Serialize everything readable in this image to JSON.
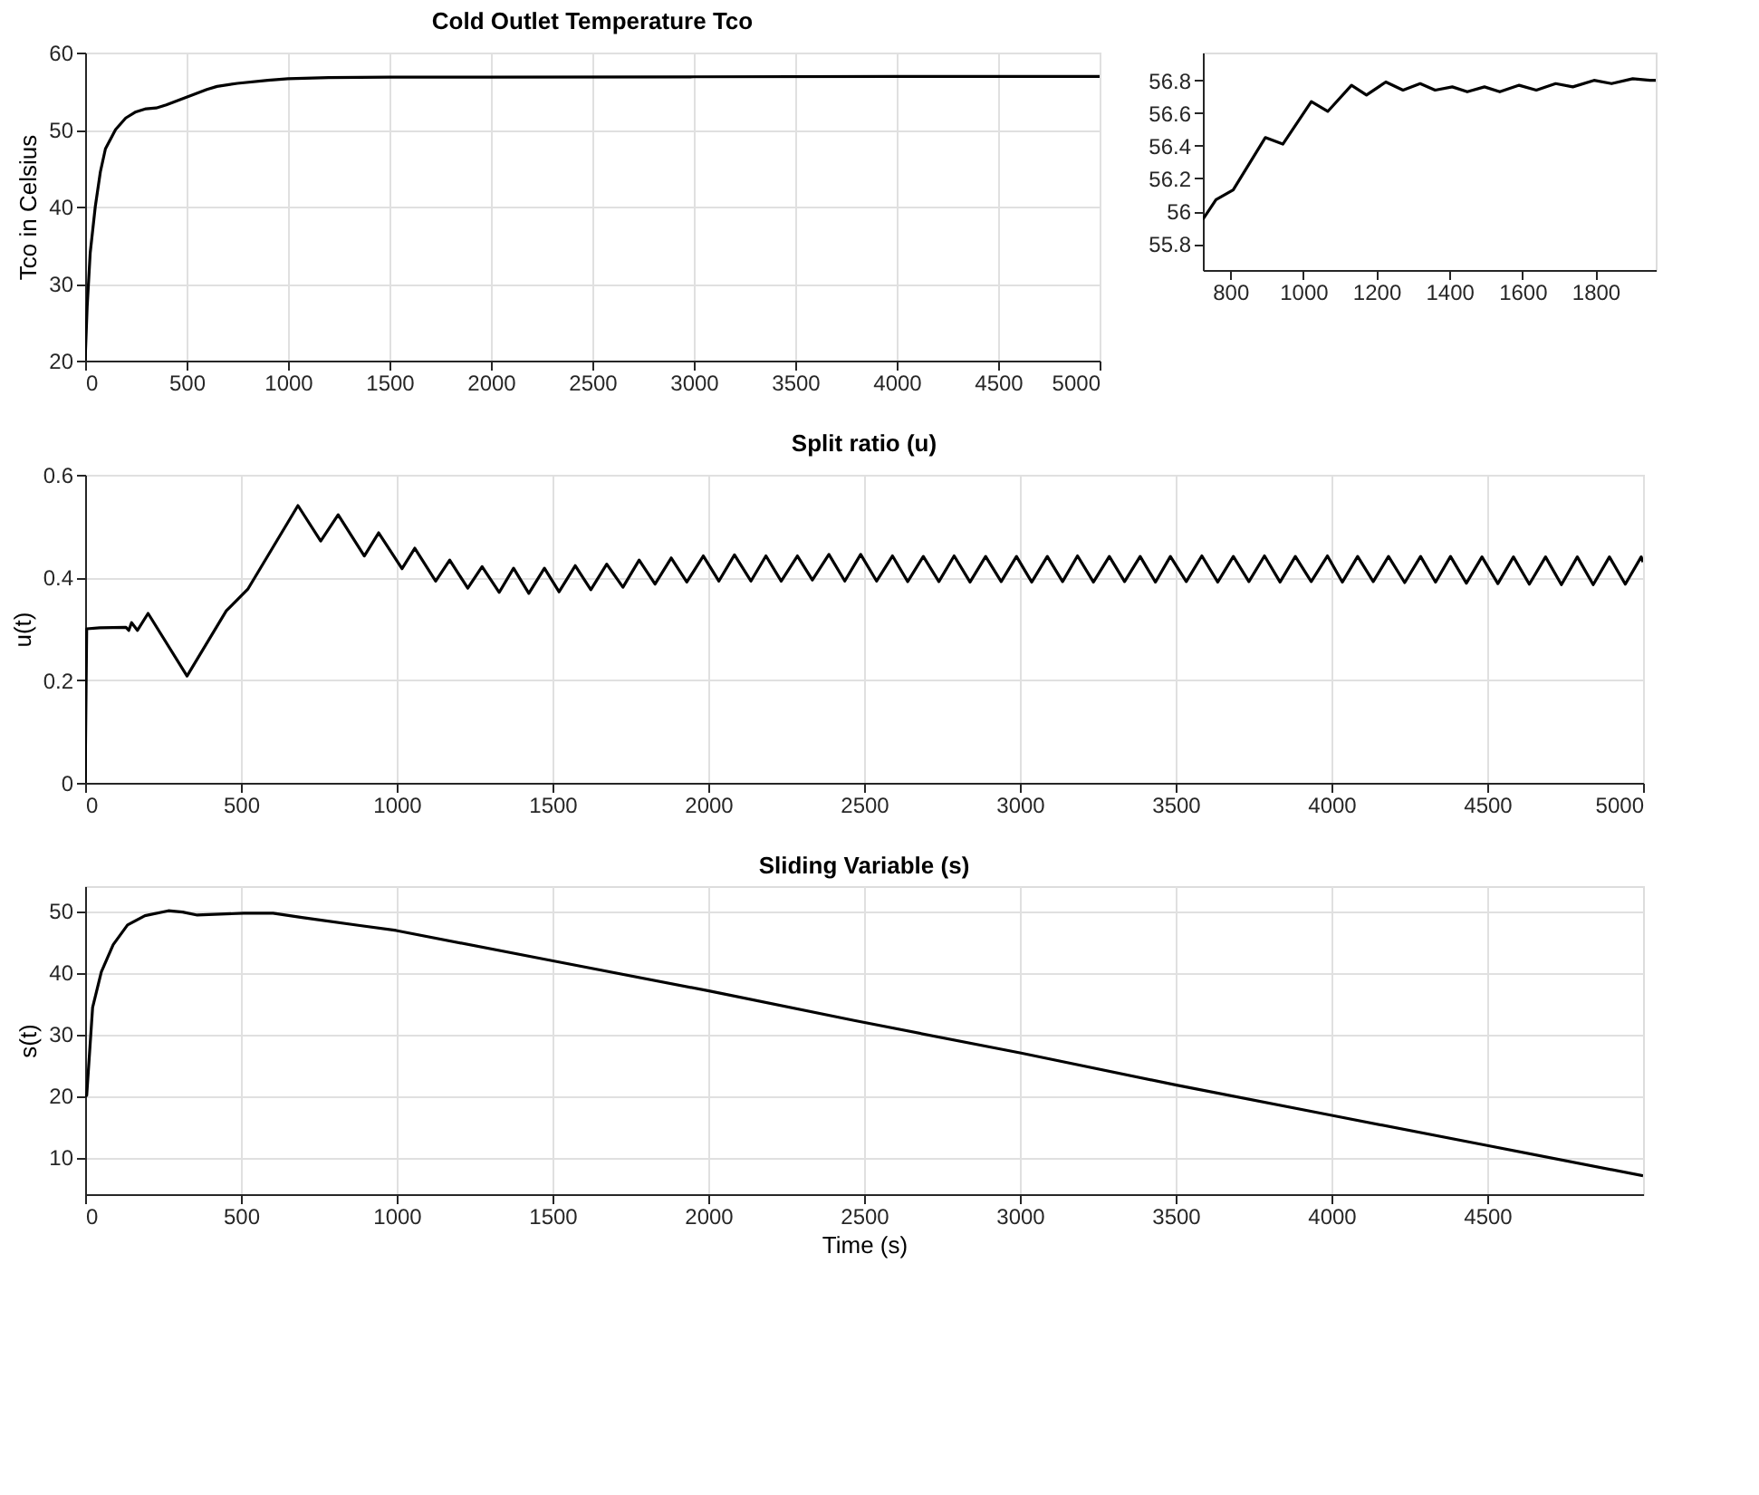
{
  "chart_data": [
    {
      "type": "line",
      "title": "Cold Outlet Temperature Tco",
      "ylabel": "Tco in Celsius",
      "xlim": [
        0,
        5000
      ],
      "ylim": [
        20,
        60
      ],
      "xticks": [
        0,
        500,
        1000,
        1500,
        2000,
        2500,
        3000,
        3500,
        4000,
        4500,
        5000
      ],
      "yticks": [
        20,
        30,
        40,
        50,
        60
      ],
      "grid": true,
      "x": [
        0,
        10,
        25,
        50,
        75,
        100,
        150,
        200,
        250,
        300,
        350,
        400,
        500,
        600,
        650,
        750,
        900,
        1000,
        1200,
        1500,
        2000,
        3000,
        4000,
        5000
      ],
      "series": [
        {
          "color": "#000000",
          "values": [
            20,
            27,
            34,
            40,
            44.5,
            47.5,
            50,
            51.5,
            52.3,
            52.7,
            52.8,
            53.2,
            54.2,
            55.2,
            55.6,
            56,
            56.4,
            56.6,
            56.75,
            56.8,
            56.8,
            56.85,
            56.9,
            56.9
          ]
        }
      ]
    },
    {
      "type": "line",
      "xlim": [
        725,
        1965
      ],
      "ylim": [
        55.64,
        56.97
      ],
      "xticks": [
        800,
        1000,
        1200,
        1400,
        1600,
        1800
      ],
      "yticks": [
        55.8,
        56,
        56.2,
        56.4,
        56.6,
        56.8
      ],
      "grid": false,
      "x": [
        725,
        761,
        808,
        896,
        944,
        1022,
        1067,
        1132,
        1173,
        1226,
        1273,
        1320,
        1361,
        1408,
        1449,
        1496,
        1538,
        1591,
        1638,
        1691,
        1738,
        1796,
        1844,
        1902,
        1949,
        1965
      ],
      "series": [
        {
          "color": "#000000",
          "values": [
            55.95,
            56.07,
            56.13,
            56.45,
            56.41,
            56.67,
            56.61,
            56.77,
            56.71,
            56.79,
            56.74,
            56.78,
            56.74,
            56.76,
            56.73,
            56.76,
            56.73,
            56.77,
            56.74,
            56.78,
            56.76,
            56.8,
            56.78,
            56.81,
            56.8,
            56.8
          ]
        }
      ]
    },
    {
      "type": "line",
      "title": "Split ratio (u)",
      "ylabel": "u(t)",
      "xlim": [
        0,
        5000
      ],
      "ylim": [
        0,
        0.6
      ],
      "xticks": [
        0,
        500,
        1000,
        1500,
        2000,
        2500,
        3000,
        3500,
        4000,
        4500,
        5000
      ],
      "yticks": [
        0,
        0.2,
        0.4,
        0.6
      ],
      "grid": true,
      "x": [
        0,
        5,
        47,
        131,
        140,
        149,
        168,
        202,
        327,
        453,
        523,
        683,
        756,
        812,
        896,
        942,
        1017,
        1058,
        1125,
        1170,
        1228,
        1274,
        1329,
        1375,
        1424,
        1474,
        1521,
        1573,
        1623,
        1674,
        1726,
        1778,
        1829,
        1881,
        1931,
        1984,
        2034,
        2084,
        2137,
        2185,
        2234,
        2286,
        2334,
        2387,
        2438,
        2489,
        2540,
        2591,
        2640,
        2690,
        2740,
        2789,
        2840,
        2890,
        2940,
        2989,
        3038,
        3088,
        3137,
        3185,
        3236,
        3287,
        3336,
        3386,
        3435,
        3483,
        3534,
        3584,
        3635,
        3685,
        3735,
        3785,
        3835,
        3884,
        3935,
        3987,
        4035,
        4084,
        4134,
        4183,
        4235,
        4286,
        4334,
        4382,
        4433,
        4483,
        4534,
        4584,
        4635,
        4687,
        4738,
        4789,
        4840,
        4892,
        4943,
        4994,
        5000
      ],
      "series": [
        {
          "color": "#000000",
          "values": [
            0,
            0.3,
            0.302,
            0.303,
            0.297,
            0.312,
            0.297,
            0.33,
            0.208,
            0.335,
            0.378,
            0.54,
            0.471,
            0.522,
            0.442,
            0.487,
            0.417,
            0.457,
            0.393,
            0.434,
            0.379,
            0.421,
            0.371,
            0.418,
            0.369,
            0.418,
            0.372,
            0.423,
            0.376,
            0.426,
            0.381,
            0.434,
            0.387,
            0.438,
            0.391,
            0.442,
            0.393,
            0.444,
            0.393,
            0.442,
            0.393,
            0.442,
            0.395,
            0.445,
            0.393,
            0.445,
            0.393,
            0.442,
            0.392,
            0.441,
            0.392,
            0.442,
            0.391,
            0.441,
            0.392,
            0.441,
            0.391,
            0.441,
            0.392,
            0.442,
            0.391,
            0.441,
            0.392,
            0.441,
            0.391,
            0.441,
            0.392,
            0.442,
            0.391,
            0.441,
            0.392,
            0.442,
            0.391,
            0.441,
            0.392,
            0.442,
            0.391,
            0.441,
            0.392,
            0.441,
            0.39,
            0.441,
            0.391,
            0.441,
            0.389,
            0.44,
            0.388,
            0.44,
            0.387,
            0.44,
            0.386,
            0.44,
            0.386,
            0.44,
            0.387,
            0.44,
            0.43
          ]
        }
      ]
    },
    {
      "type": "line",
      "title": "Sliding Variable (s)",
      "xlabel": "Time (s)",
      "ylabel": "s(t)",
      "xlim": [
        0,
        5000
      ],
      "ylim": [
        4,
        54
      ],
      "xticks": [
        0,
        500,
        1000,
        1500,
        2000,
        2500,
        3000,
        3500,
        4000,
        4500
      ],
      "yticks": [
        10,
        20,
        30,
        40,
        50
      ],
      "grid": true,
      "x": [
        0,
        5,
        24,
        52,
        90,
        136,
        192,
        267,
        313,
        360,
        509,
        603,
        696,
        882,
        998,
        1498,
        2002,
        2468,
        3004,
        3503,
        4001,
        4500,
        5000
      ],
      "series": [
        {
          "color": "#000000",
          "values": [
            20,
            20,
            34.3,
            40.1,
            44.5,
            47.7,
            49.2,
            50,
            49.8,
            49.3,
            49.6,
            49.6,
            48.9,
            47.6,
            46.8,
            41.9,
            37,
            32.2,
            26.9,
            21.7,
            16.8,
            11.9,
            7
          ]
        }
      ]
    }
  ]
}
